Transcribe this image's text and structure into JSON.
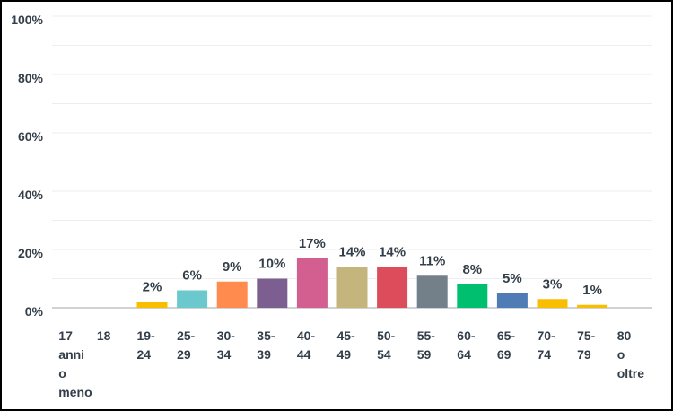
{
  "chart_data": {
    "type": "bar",
    "title": "",
    "xlabel": "",
    "ylabel": "",
    "ylim": [
      0,
      100
    ],
    "yticks": [
      "0%",
      "20%",
      "40%",
      "60%",
      "80%",
      "100%"
    ],
    "grid": true,
    "categories": [
      [
        "17",
        "anni",
        "o",
        "meno"
      ],
      [
        "18"
      ],
      [
        "19-",
        "24"
      ],
      [
        "25-",
        "29"
      ],
      [
        "30-",
        "34"
      ],
      [
        "35-",
        "39"
      ],
      [
        "40-",
        "44"
      ],
      [
        "45-",
        "49"
      ],
      [
        "50-",
        "54"
      ],
      [
        "55-",
        "59"
      ],
      [
        "60-",
        "64"
      ],
      [
        "65-",
        "69"
      ],
      [
        "70-",
        "74"
      ],
      [
        "75-",
        "79"
      ],
      [
        "80",
        "o",
        "oltre"
      ]
    ],
    "values": [
      0,
      0,
      2,
      6,
      9,
      10,
      17,
      14,
      14,
      11,
      8,
      5,
      3,
      1,
      0
    ],
    "data_labels": [
      "",
      "",
      "2%",
      "6%",
      "9%",
      "10%",
      "17%",
      "14%",
      "14%",
      "11%",
      "8%",
      "5%",
      "3%",
      "1%",
      ""
    ],
    "colors": [
      "#f9be00",
      "#f9be00",
      "#f9be00",
      "#6bc8cd",
      "#ff8b4f",
      "#7d5e90",
      "#d25f90",
      "#c4b57d",
      "#dd4c5a",
      "#73808a",
      "#00bf6f",
      "#507cb6",
      "#f9be00",
      "#f9be00",
      "#f9be00"
    ]
  }
}
